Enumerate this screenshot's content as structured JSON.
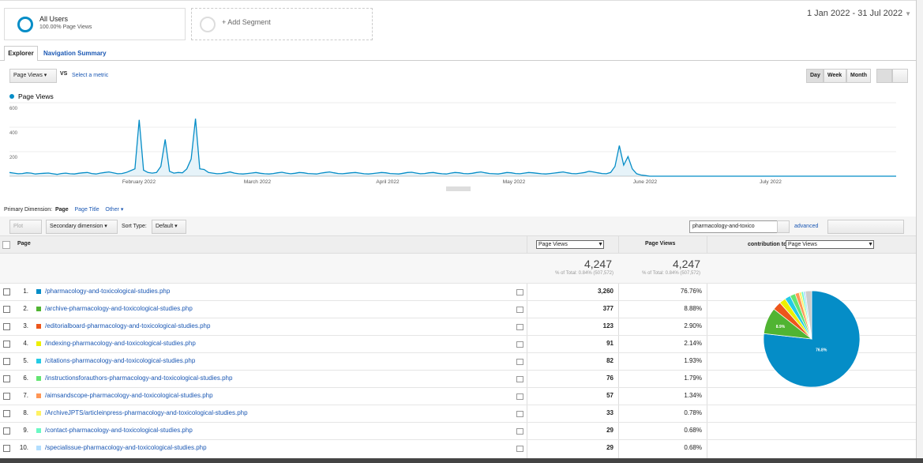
{
  "segments": {
    "active": {
      "name": "All Users",
      "detail": "100.00% Page Views"
    },
    "add": "+ Add Segment"
  },
  "date_range": "1 Jan 2022 - 31 Jul 2022",
  "tabs": [
    "Explorer",
    "Navigation Summary"
  ],
  "metric_bar": {
    "metric": "Page Views",
    "vs": "VS",
    "select": "Select a metric",
    "periods": [
      "Day",
      "Week",
      "Month"
    ]
  },
  "trend_chart": {
    "type": "line",
    "legend": "Page Views",
    "color": "#058dc7",
    "ylim": [
      0,
      600
    ],
    "yticks": [
      200,
      400,
      600
    ],
    "months": [
      "February 2022",
      "March 2022",
      "April 2022",
      "May 2022",
      "June 2022",
      "July 2022"
    ],
    "values": [
      30,
      25,
      20,
      22,
      28,
      25,
      18,
      22,
      24,
      26,
      20,
      15,
      22,
      25,
      20,
      18,
      24,
      28,
      30,
      22,
      18,
      25,
      30,
      35,
      28,
      20,
      22,
      30,
      45,
      60,
      460,
      50,
      30,
      25,
      30,
      80,
      300,
      40,
      25,
      30,
      28,
      60,
      140,
      470,
      60,
      55,
      30,
      25,
      20,
      22,
      28,
      35,
      25,
      20,
      18,
      22,
      26,
      30,
      24,
      20,
      18,
      22,
      28,
      32,
      25,
      20,
      24,
      30,
      28,
      22,
      20,
      18,
      25,
      30,
      35,
      28,
      22,
      20,
      24,
      28,
      30,
      25,
      20,
      18,
      22,
      26,
      30,
      28,
      22,
      20,
      18,
      24,
      30,
      32,
      26,
      20,
      22,
      28,
      30,
      24,
      20,
      18,
      25,
      30,
      28,
      22,
      20,
      24,
      30,
      35,
      28,
      22,
      20,
      18,
      24,
      30,
      28,
      22,
      20,
      25,
      30,
      28,
      24,
      20,
      18,
      22,
      26,
      30,
      35,
      28,
      22,
      20,
      25,
      30,
      40,
      35,
      28,
      22,
      20,
      30,
      80,
      250,
      90,
      160,
      60,
      20,
      10,
      5,
      0,
      0,
      0,
      0,
      0,
      0,
      0,
      0,
      0,
      0,
      0,
      0,
      0,
      0,
      0,
      0,
      0,
      0,
      0,
      0,
      0,
      0,
      0,
      0,
      0,
      0,
      0,
      0,
      0,
      0,
      0,
      0,
      0,
      0,
      0,
      0,
      0,
      0,
      0,
      0,
      0,
      0,
      0,
      0,
      0,
      0,
      0,
      0,
      0,
      0,
      0,
      0,
      0,
      0,
      0,
      0,
      0,
      0
    ]
  },
  "toolbar": {
    "primary_label": "Primary Dimension:",
    "primary": "Page",
    "page_title": "Page Title",
    "other": "Other",
    "plot_rows": "Plot Rows",
    "secondary": "Secondary dimension",
    "sort_label": "Sort Type:",
    "sort": "Default",
    "search": "pharmacology-and-toxico",
    "advanced": "advanced"
  },
  "table": {
    "headers": {
      "page": "Page",
      "metric_select": "Page Views",
      "metric": "Page Views",
      "contribution": "contribution to total:",
      "contribution_select": "Page Views"
    },
    "totals": {
      "value1": "4,247",
      "pct1": "% of Total: 0.84% (507,572)",
      "value2": "4,247",
      "pct2": "% of Total: 0.84% (507,572)"
    },
    "rows": [
      {
        "index": "1.",
        "page": "/pharmacology-and-toxicological-studies.php",
        "views": "3,260",
        "percent": "76.76%",
        "color": "#058dc7"
      },
      {
        "index": "2.",
        "page": "/archive-pharmacology-and-toxicological-studies.php",
        "views": "377",
        "percent": "8.88%",
        "color": "#50b432"
      },
      {
        "index": "3.",
        "page": "/editorialboard-pharmacology-and-toxicological-studies.php",
        "views": "123",
        "percent": "2.90%",
        "color": "#ed561b"
      },
      {
        "index": "4.",
        "page": "/indexing-pharmacology-and-toxicological-studies.php",
        "views": "91",
        "percent": "2.14%",
        "color": "#edef00"
      },
      {
        "index": "5.",
        "page": "/citations-pharmacology-and-toxicological-studies.php",
        "views": "82",
        "percent": "1.93%",
        "color": "#24cbe5"
      },
      {
        "index": "6.",
        "page": "/instructionsforauthors-pharmacology-and-toxicological-studies.php",
        "views": "76",
        "percent": "1.79%",
        "color": "#64e572"
      },
      {
        "index": "7.",
        "page": "/aimsandscope-pharmacology-and-toxicological-studies.php",
        "views": "57",
        "percent": "1.34%",
        "color": "#ff9655"
      },
      {
        "index": "8.",
        "page": "/ArchiveJPTS/articleinpress-pharmacology-and-toxicological-studies.php",
        "views": "33",
        "percent": "0.78%",
        "color": "#fff263"
      },
      {
        "index": "9.",
        "page": "/contact-pharmacology-and-toxicological-studies.php",
        "views": "29",
        "percent": "0.68%",
        "color": "#6af9c4"
      },
      {
        "index": "10.",
        "page": "/specialissue-pharmacology-and-toxicological-studies.php",
        "views": "29",
        "percent": "0.68%",
        "color": "#b2deff"
      }
    ]
  },
  "pie": {
    "type": "pie",
    "values": [
      76.76,
      8.88,
      2.9,
      2.14,
      1.93,
      1.79,
      1.34,
      0.78,
      0.68,
      0.68
    ],
    "labels": [
      "76.8%",
      "8.9%"
    ]
  }
}
